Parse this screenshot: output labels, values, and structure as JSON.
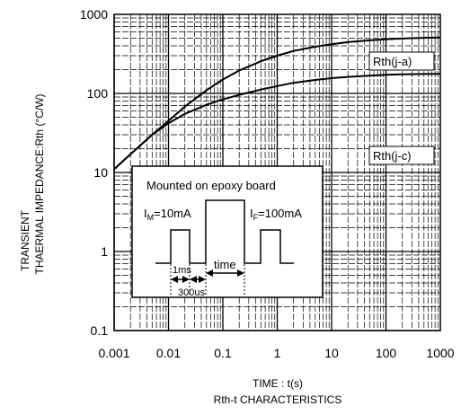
{
  "chart_data": {
    "type": "line",
    "x_scale": "log",
    "y_scale": "log",
    "xlim": [
      0.001,
      1000
    ],
    "ylim": [
      0.1,
      1000
    ],
    "x_ticks": [
      "0.001",
      "0.01",
      "0.1",
      "1",
      "10",
      "100",
      "1000"
    ],
    "y_ticks": [
      "1000",
      "100",
      "10",
      "1",
      "0.1"
    ],
    "xlabel": "TIME : t(s)",
    "ylabel_line1": "TRANSIENT",
    "ylabel_line2": "THAERMAL IMPEDANCE:Rth (°C/W)",
    "caption": "Rth-t CHARACTERISTICS",
    "grid": true,
    "series": [
      {
        "name": "Rth(j-a)",
        "x": [
          0.001,
          0.002,
          0.005,
          0.01,
          0.02,
          0.05,
          0.1,
          0.2,
          0.5,
          1,
          2,
          5,
          10,
          20,
          50,
          100,
          200,
          500,
          1000
        ],
        "y": [
          11,
          17,
          30,
          45,
          68,
          110,
          150,
          195,
          255,
          300,
          345,
          390,
          420,
          445,
          470,
          485,
          495,
          505,
          510
        ]
      },
      {
        "name": "Rth(j-c)",
        "x": [
          0.001,
          0.002,
          0.005,
          0.01,
          0.02,
          0.03,
          0.05,
          0.1,
          0.2,
          0.5,
          1,
          2,
          5,
          10,
          20,
          50,
          100,
          200,
          500,
          1000
        ],
        "y": [
          11,
          17,
          30,
          42,
          55,
          62,
          72,
          84,
          96,
          112,
          124,
          136,
          148,
          156,
          162,
          168,
          172,
          174,
          176,
          177
        ]
      }
    ],
    "annotations": [
      {
        "text": "Rth(j-a)"
      },
      {
        "text": "Rth(j-c)"
      }
    ],
    "inset": {
      "title": "Mounted on epoxy board",
      "im_label_main": "I",
      "im_label_sub": "M",
      "im_label_value": "=10mA",
      "if_label_main": "I",
      "if_label_sub": "F",
      "if_label_value": "=100mA",
      "label_1ms": "1ms",
      "label_time": "time",
      "label_300us": "300us"
    }
  }
}
